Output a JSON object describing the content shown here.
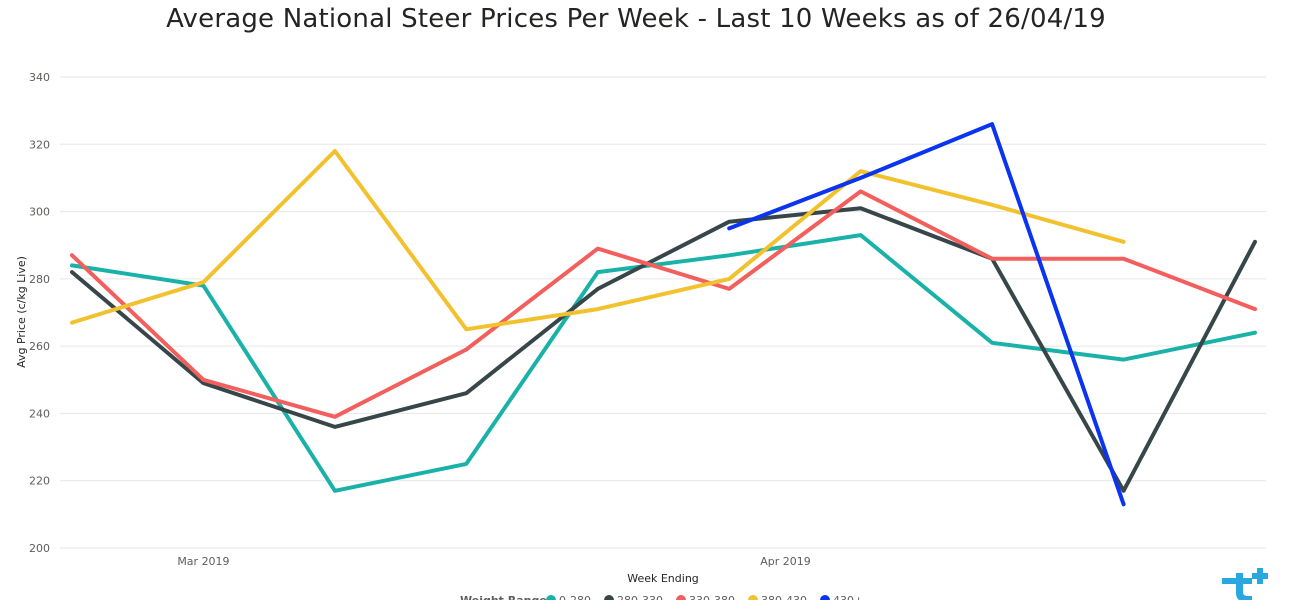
{
  "chart_data": {
    "type": "line",
    "title": "Average National Steer Prices Per Week - Last 10 Weeks as of 26/04/19",
    "xlabel": "Week Ending",
    "ylabel": "Avg Price (c/kg Live)",
    "ylim": [
      200,
      340
    ],
    "yticks": [
      200,
      220,
      240,
      260,
      280,
      300,
      320,
      340
    ],
    "x": [
      "2019-02-22",
      "2019-03-01",
      "2019-03-08",
      "2019-03-15",
      "2019-03-22",
      "2019-03-29",
      "2019-04-05",
      "2019-04-12",
      "2019-04-19",
      "2019-04-26"
    ],
    "xtick_labels": [
      {
        "x": "2019-03-01",
        "label": "Mar 2019"
      },
      {
        "x": "2019-04-01",
        "label": "Apr 2019"
      }
    ],
    "grid": true,
    "legend_position": "bottom",
    "legend_title": "Weight Range",
    "series": [
      {
        "name": "0-280",
        "color": "#1ab2a8",
        "values": [
          284,
          278,
          217,
          225,
          282,
          287,
          293,
          261,
          256,
          264
        ]
      },
      {
        "name": "280-330",
        "color": "#374649",
        "values": [
          282,
          249,
          236,
          246,
          277,
          297,
          301,
          286,
          217,
          291
        ]
      },
      {
        "name": "330-380",
        "color": "#f25f5c",
        "values": [
          287,
          250,
          239,
          259,
          289,
          277,
          306,
          286,
          286,
          271
        ]
      },
      {
        "name": "380-430",
        "color": "#f2c12e",
        "values": [
          267,
          279,
          318,
          265,
          271,
          280,
          312,
          302,
          291,
          null
        ]
      },
      {
        "name": "430+",
        "color": "#0a34f0",
        "values": [
          null,
          null,
          null,
          null,
          null,
          295,
          310,
          326,
          213,
          null
        ]
      }
    ]
  },
  "logo": {
    "name": "brand-logo",
    "color": "#29a8e0"
  }
}
